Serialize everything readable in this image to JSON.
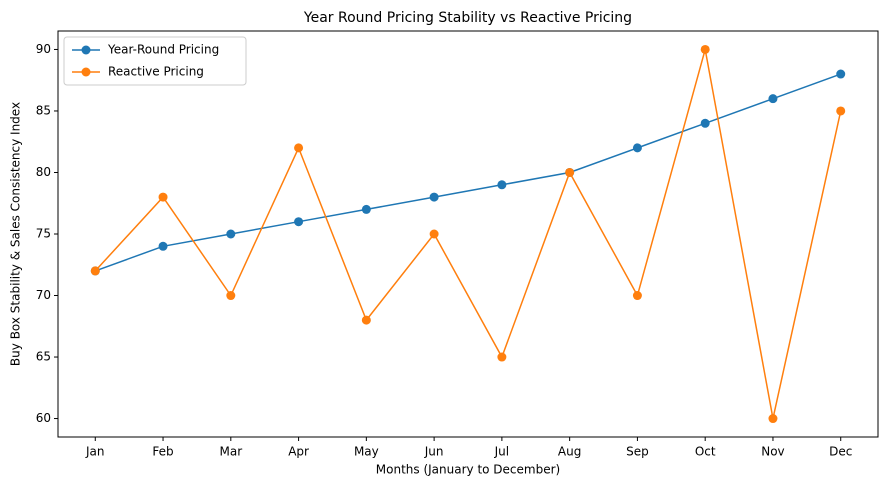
{
  "chart_data": {
    "type": "line",
    "title": "Year Round Pricing Stability vs Reactive Pricing",
    "xlabel": "Months (January to December)",
    "ylabel": "Buy Box Stability & Sales Consistency Index",
    "categories": [
      "Jan",
      "Feb",
      "Mar",
      "Apr",
      "May",
      "Jun",
      "Jul",
      "Aug",
      "Sep",
      "Oct",
      "Nov",
      "Dec"
    ],
    "series": [
      {
        "name": "Year-Round Pricing",
        "color": "#1f77b4",
        "values": [
          72,
          74,
          75,
          76,
          77,
          78,
          79,
          80,
          82,
          84,
          86,
          88
        ]
      },
      {
        "name": "Reactive Pricing",
        "color": "#ff7f0e",
        "values": [
          72,
          78,
          70,
          82,
          68,
          75,
          65,
          80,
          70,
          90,
          60,
          85
        ]
      }
    ],
    "ylim": [
      58.5,
      91.5
    ],
    "yticks": [
      60,
      65,
      70,
      75,
      80,
      85,
      90
    ],
    "grid": false,
    "legend": "upper-left",
    "markers": true
  }
}
